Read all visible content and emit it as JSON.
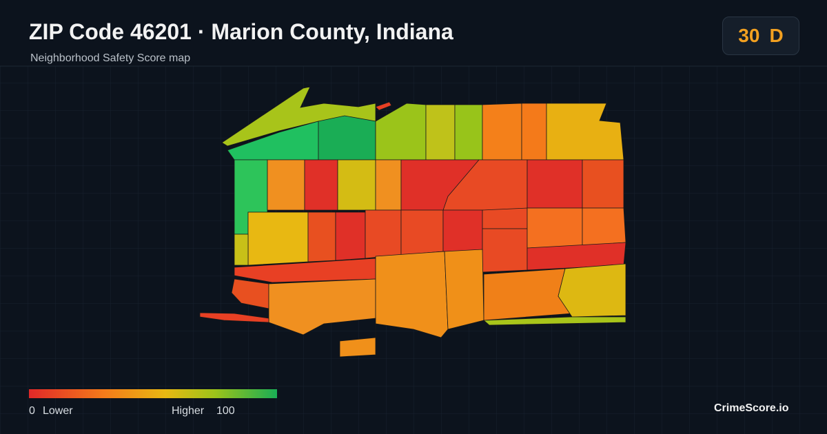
{
  "header": {
    "title": "ZIP Code 46201 · Marion County, Indiana",
    "subtitle": "Neighborhood Safety Score map"
  },
  "score": {
    "value": 30,
    "grade": "D"
  },
  "legend": {
    "min": 0,
    "min_label": "Lower",
    "max_label": "Higher",
    "max": 100
  },
  "brand": "CrimeScore.io"
}
